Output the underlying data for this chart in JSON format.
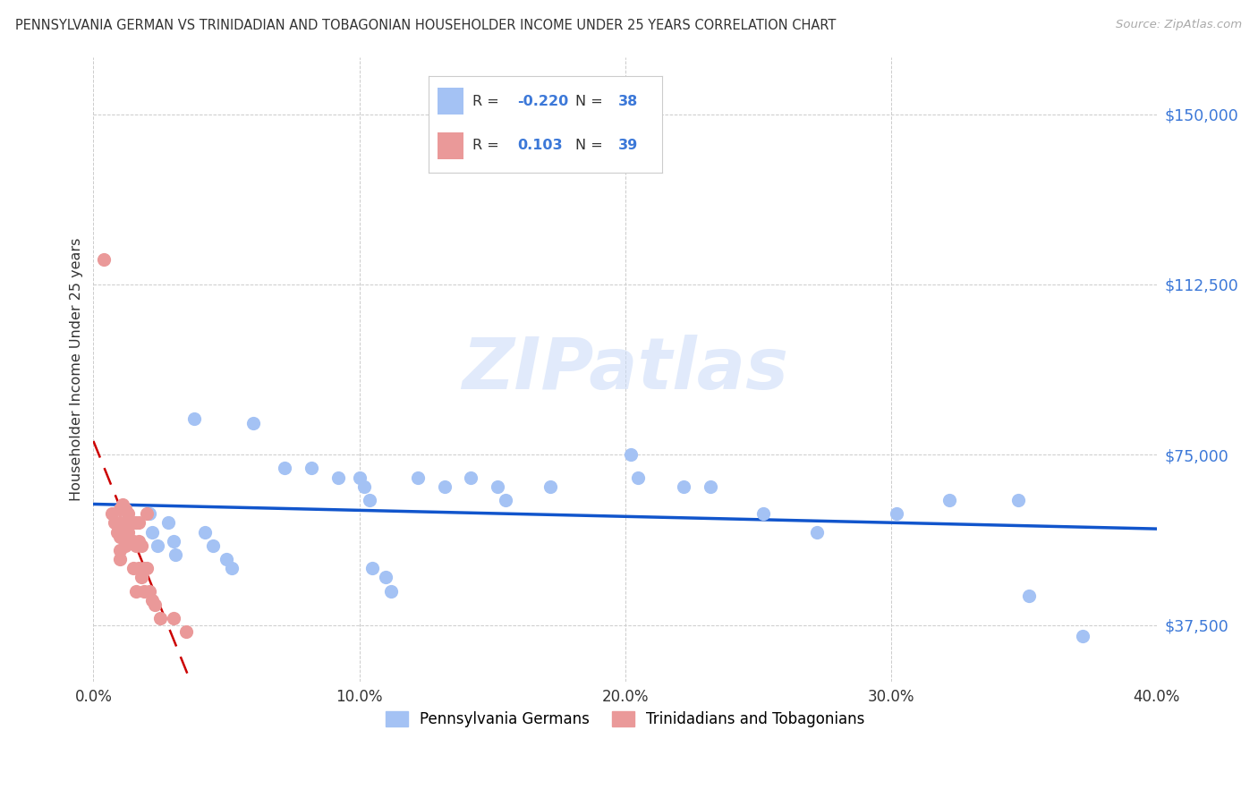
{
  "title": "PENNSYLVANIA GERMAN VS TRINIDADIAN AND TOBAGONIAN HOUSEHOLDER INCOME UNDER 25 YEARS CORRELATION CHART",
  "source": "Source: ZipAtlas.com",
  "ylabel": "Householder Income Under 25 years",
  "xlim": [
    0.0,
    0.4
  ],
  "ylim": [
    25000,
    162500
  ],
  "yticks": [
    37500,
    75000,
    112500,
    150000
  ],
  "ytick_labels": [
    "$37,500",
    "$75,000",
    "$112,500",
    "$150,000"
  ],
  "xticks": [
    0.0,
    0.1,
    0.2,
    0.3,
    0.4
  ],
  "xtick_labels": [
    "0.0%",
    "10.0%",
    "20.0%",
    "30.0%",
    "40.0%"
  ],
  "blue_color": "#a4c2f4",
  "pink_color": "#ea9999",
  "trend_blue_color": "#1155cc",
  "trend_pink_color": "#cc0000",
  "watermark": "ZIPatlas",
  "r_blue": "-0.220",
  "n_blue": "38",
  "r_pink": "0.103",
  "n_pink": "39",
  "legend_label_blue": "Pennsylvania Germans",
  "legend_label_pink": "Trinidadians and Tobagonians",
  "blue_scatter_x": [
    0.021,
    0.022,
    0.024,
    0.028,
    0.03,
    0.031,
    0.038,
    0.042,
    0.045,
    0.05,
    0.052,
    0.06,
    0.072,
    0.082,
    0.092,
    0.1,
    0.102,
    0.104,
    0.105,
    0.11,
    0.112,
    0.122,
    0.132,
    0.142,
    0.152,
    0.155,
    0.172,
    0.202,
    0.205,
    0.222,
    0.232,
    0.252,
    0.272,
    0.302,
    0.322,
    0.348,
    0.352,
    0.372
  ],
  "blue_scatter_y": [
    62000,
    58000,
    55000,
    60000,
    56000,
    53000,
    83000,
    58000,
    55000,
    52000,
    50000,
    82000,
    72000,
    72000,
    70000,
    70000,
    68000,
    65000,
    50000,
    48000,
    45000,
    70000,
    68000,
    70000,
    68000,
    65000,
    68000,
    75000,
    70000,
    68000,
    68000,
    62000,
    58000,
    62000,
    65000,
    65000,
    44000,
    35000
  ],
  "pink_scatter_x": [
    0.004,
    0.007,
    0.008,
    0.009,
    0.01,
    0.01,
    0.01,
    0.01,
    0.01,
    0.011,
    0.012,
    0.012,
    0.012,
    0.012,
    0.013,
    0.013,
    0.014,
    0.014,
    0.015,
    0.015,
    0.015,
    0.016,
    0.016,
    0.016,
    0.017,
    0.017,
    0.017,
    0.018,
    0.018,
    0.019,
    0.019,
    0.02,
    0.02,
    0.021,
    0.022,
    0.023,
    0.025,
    0.03,
    0.035
  ],
  "pink_scatter_y": [
    118000,
    62000,
    60000,
    58000,
    63000,
    60000,
    57000,
    54000,
    52000,
    64000,
    63000,
    60000,
    58000,
    55000,
    62000,
    58000,
    60000,
    56000,
    60000,
    56000,
    50000,
    60000,
    55000,
    45000,
    60000,
    56000,
    50000,
    55000,
    48000,
    50000,
    45000,
    62000,
    50000,
    45000,
    43000,
    42000,
    39000,
    39000,
    36000
  ]
}
